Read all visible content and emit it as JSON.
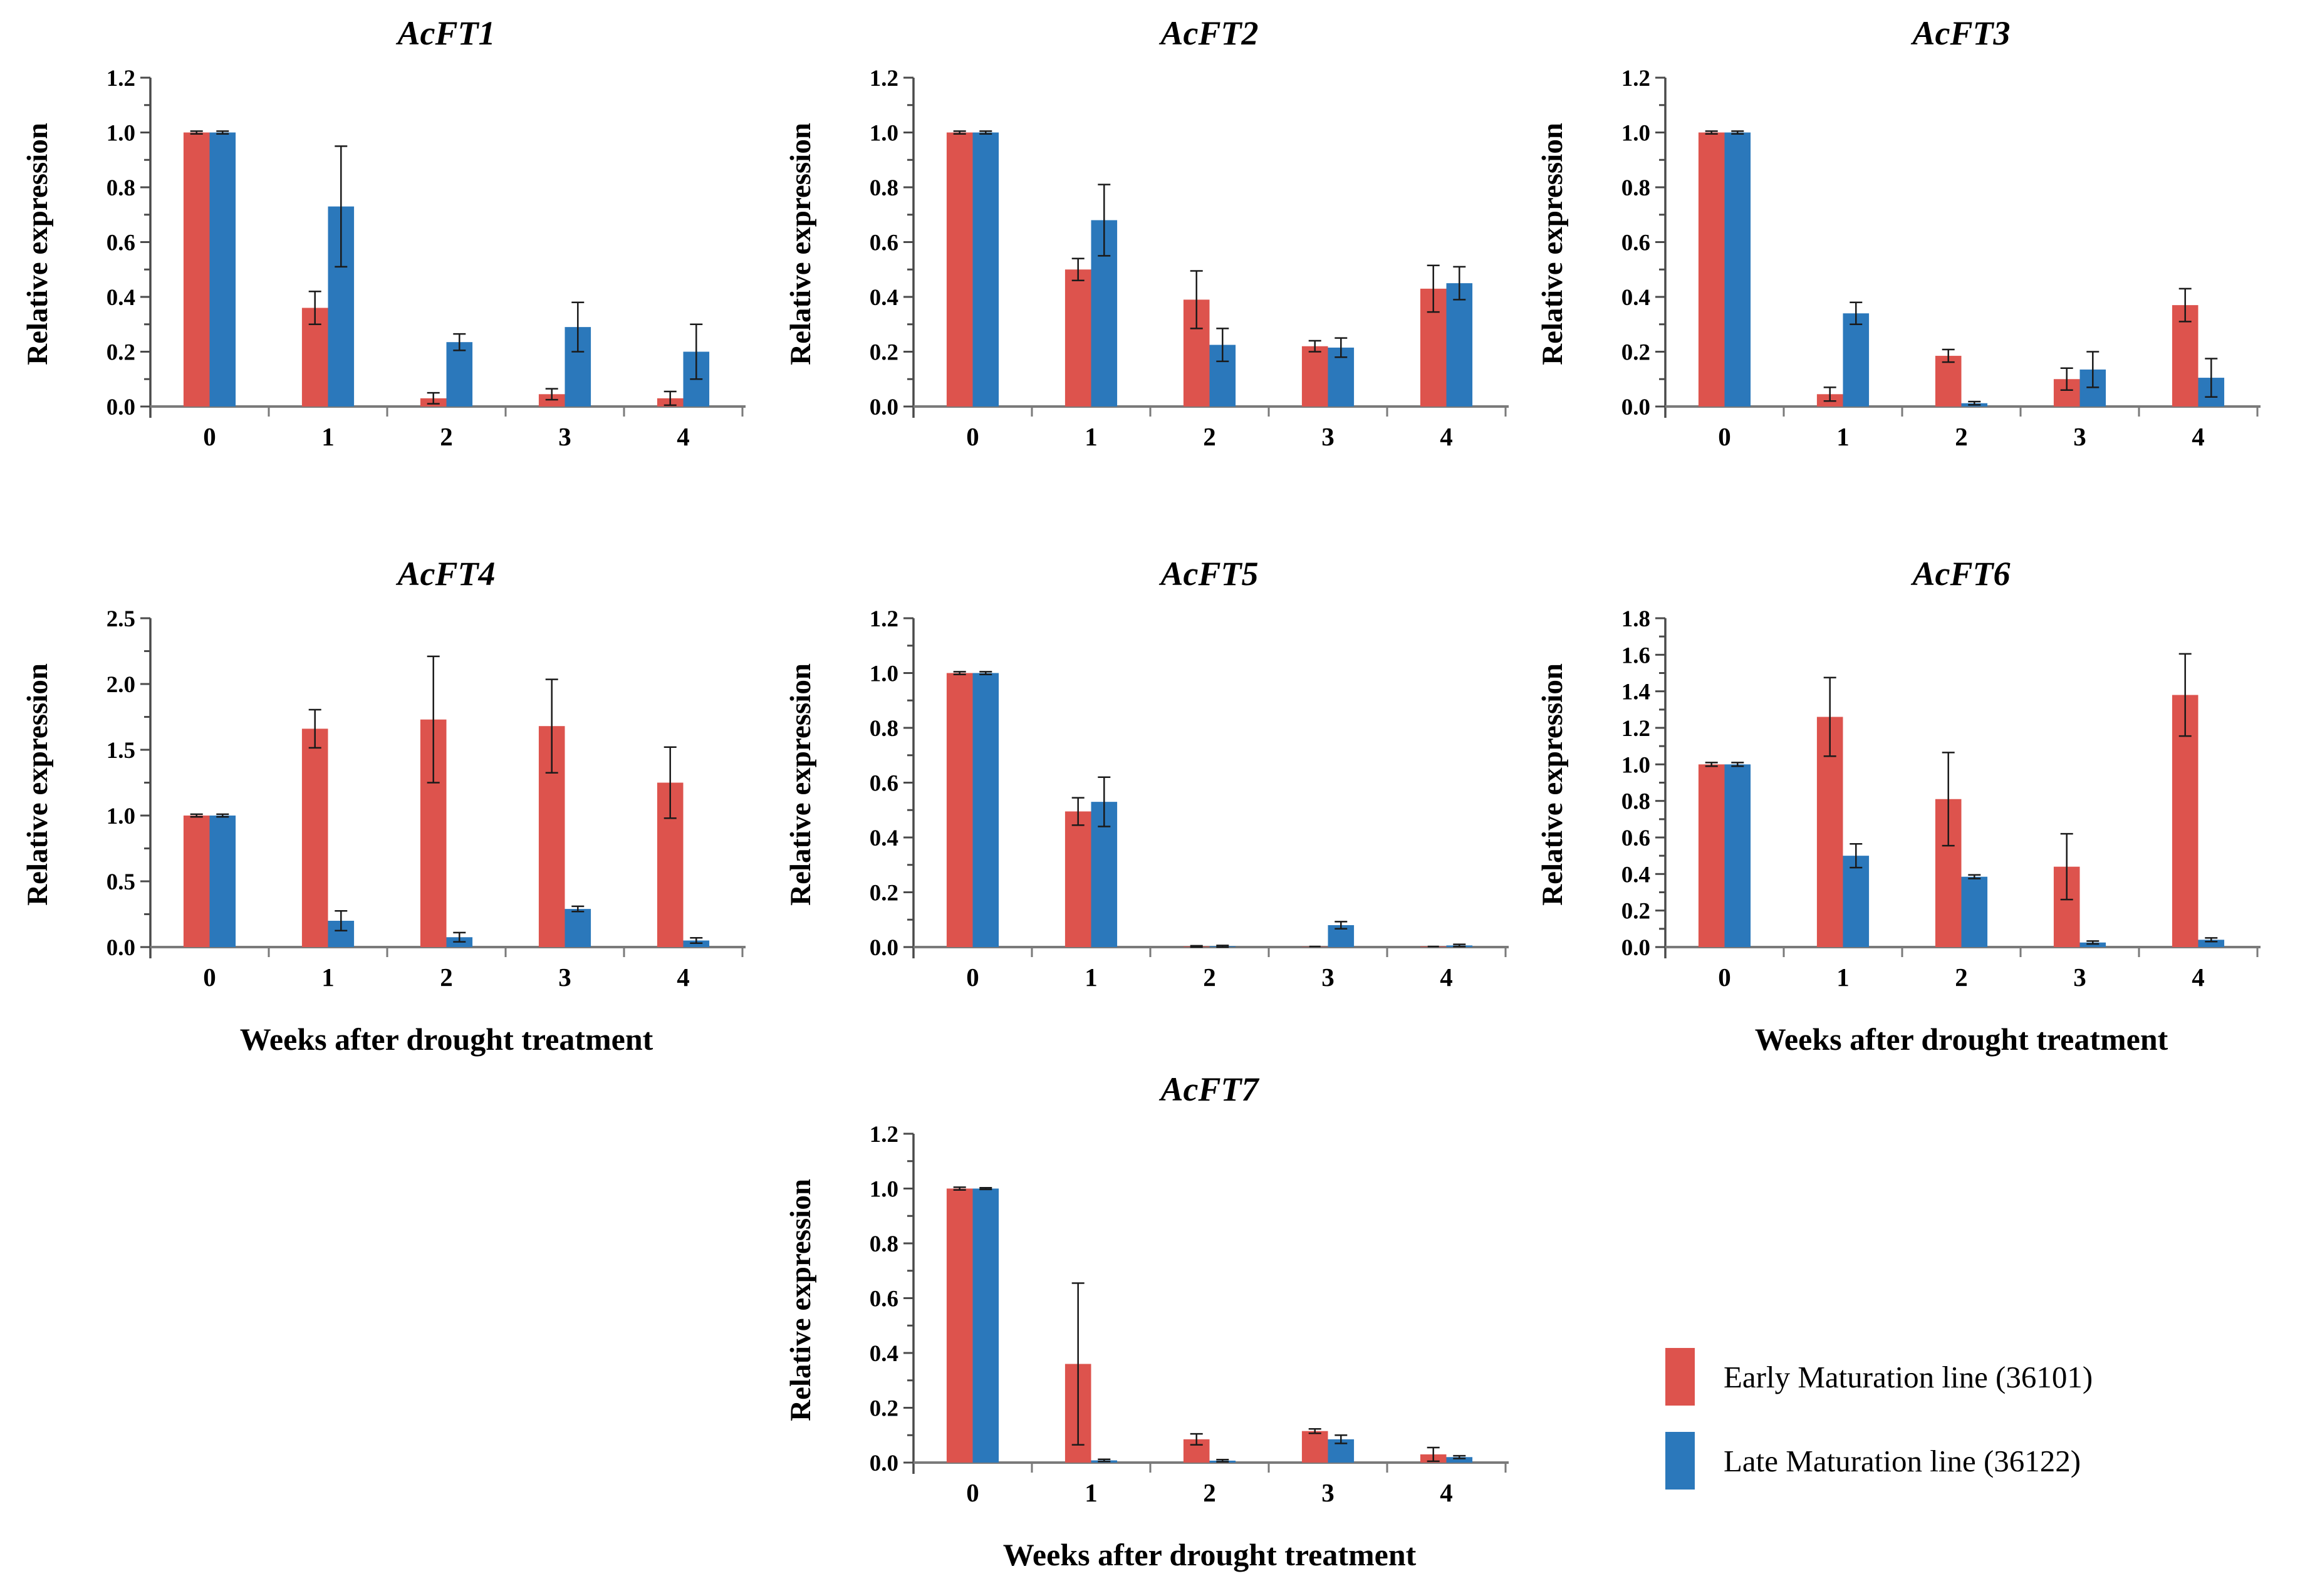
{
  "figure": {
    "colors": {
      "early": "#DD534D",
      "late": "#2B78BB",
      "y_axis": "#4a4a4a",
      "x_axis": "#7a7a7a",
      "error_bar": "#1a1a1a"
    },
    "legend": {
      "items": [
        {
          "label": "Early Maturation line (36101)",
          "color": "#DD534D"
        },
        {
          "label": "Late Maturation line (36122)",
          "color": "#2B78BB"
        }
      ]
    }
  },
  "chart_data": [
    {
      "type": "bar",
      "title": "AcFT1",
      "ylabel": "Relative expression",
      "xlabel": "",
      "categories": [
        "0",
        "1",
        "2",
        "3",
        "4"
      ],
      "ylim": [
        0,
        1.2
      ],
      "ytick_step": 0.2,
      "grid": false,
      "error_bars": true,
      "series": [
        {
          "name": "Early Maturation line (36101)",
          "values": [
            1.0,
            0.36,
            0.03,
            0.045,
            0.03
          ],
          "errors": [
            0.005,
            0.06,
            0.02,
            0.02,
            0.025
          ]
        },
        {
          "name": "Late Maturation line (36122)",
          "values": [
            1.0,
            0.73,
            0.235,
            0.29,
            0.2
          ],
          "errors": [
            0.005,
            0.22,
            0.03,
            0.09,
            0.1
          ]
        }
      ]
    },
    {
      "type": "bar",
      "title": "AcFT2",
      "ylabel": "Relative expression",
      "xlabel": "",
      "categories": [
        "0",
        "1",
        "2",
        "3",
        "4"
      ],
      "ylim": [
        0,
        1.2
      ],
      "ytick_step": 0.2,
      "grid": false,
      "error_bars": true,
      "series": [
        {
          "name": "Early Maturation line (36101)",
          "values": [
            1.0,
            0.5,
            0.39,
            0.22,
            0.43
          ],
          "errors": [
            0.005,
            0.04,
            0.105,
            0.02,
            0.085
          ]
        },
        {
          "name": "Late Maturation line (36122)",
          "values": [
            1.0,
            0.68,
            0.225,
            0.215,
            0.45
          ],
          "errors": [
            0.005,
            0.13,
            0.06,
            0.035,
            0.06
          ]
        }
      ]
    },
    {
      "type": "bar",
      "title": "AcFT3",
      "ylabel": "Relative expression",
      "xlabel": "",
      "categories": [
        "0",
        "1",
        "2",
        "3",
        "4"
      ],
      "ylim": [
        0,
        1.2
      ],
      "ytick_step": 0.2,
      "grid": false,
      "error_bars": true,
      "series": [
        {
          "name": "Early Maturation line (36101)",
          "values": [
            1.0,
            0.045,
            0.185,
            0.1,
            0.37
          ],
          "errors": [
            0.005,
            0.025,
            0.023,
            0.04,
            0.06
          ]
        },
        {
          "name": "Late Maturation line (36122)",
          "values": [
            1.0,
            0.34,
            0.012,
            0.135,
            0.105
          ],
          "errors": [
            0.005,
            0.04,
            0.006,
            0.065,
            0.07
          ]
        }
      ]
    },
    {
      "type": "bar",
      "title": "AcFT4",
      "ylabel": "Relative expression",
      "xlabel": "Weeks after drought treatment",
      "categories": [
        "0",
        "1",
        "2",
        "3",
        "4"
      ],
      "ylim": [
        0,
        2.5
      ],
      "ytick_step": 0.5,
      "grid": false,
      "error_bars": true,
      "series": [
        {
          "name": "Early Maturation line (36101)",
          "values": [
            1.0,
            1.66,
            1.73,
            1.68,
            1.25
          ],
          "errors": [
            0.01,
            0.145,
            0.48,
            0.355,
            0.27
          ]
        },
        {
          "name": "Late Maturation line (36122)",
          "values": [
            1.0,
            0.2,
            0.075,
            0.29,
            0.05
          ],
          "errors": [
            0.01,
            0.075,
            0.035,
            0.02,
            0.02
          ]
        }
      ]
    },
    {
      "type": "bar",
      "title": "AcFT5",
      "ylabel": "Relative expression",
      "xlabel": "",
      "categories": [
        "0",
        "1",
        "2",
        "3",
        "4"
      ],
      "ylim": [
        0,
        1.2
      ],
      "ytick_step": 0.2,
      "grid": false,
      "error_bars": true,
      "series": [
        {
          "name": "Early Maturation line (36101)",
          "values": [
            1.0,
            0.495,
            0.002,
            0.001,
            0.002
          ],
          "errors": [
            0.005,
            0.05,
            0.003,
            0,
            0.002
          ]
        },
        {
          "name": "Late Maturation line (36122)",
          "values": [
            1.0,
            0.53,
            0.003,
            0.08,
            0.006
          ],
          "errors": [
            0.005,
            0.09,
            0.003,
            0.013,
            0.004
          ]
        }
      ]
    },
    {
      "type": "bar",
      "title": "AcFT6",
      "ylabel": "Relative expression",
      "xlabel": "Weeks after drought treatment",
      "categories": [
        "0",
        "1",
        "2",
        "3",
        "4"
      ],
      "ylim": [
        0,
        1.8
      ],
      "ytick_step": 0.2,
      "grid": false,
      "error_bars": true,
      "series": [
        {
          "name": "Early Maturation line (36101)",
          "values": [
            1.0,
            1.26,
            0.81,
            0.44,
            1.38
          ],
          "errors": [
            0.01,
            0.215,
            0.255,
            0.18,
            0.225
          ]
        },
        {
          "name": "Late Maturation line (36122)",
          "values": [
            1.0,
            0.5,
            0.385,
            0.025,
            0.04
          ],
          "errors": [
            0.01,
            0.065,
            0.01,
            0.008,
            0.01
          ]
        }
      ]
    },
    {
      "type": "bar",
      "title": "AcFT7",
      "ylabel": "Relative expression",
      "xlabel": "Weeks after drought treatment",
      "categories": [
        "0",
        "1",
        "2",
        "3",
        "4"
      ],
      "ylim": [
        0,
        1.2
      ],
      "ytick_step": 0.2,
      "grid": false,
      "error_bars": true,
      "series": [
        {
          "name": "Early Maturation line (36101)",
          "values": [
            1.0,
            0.36,
            0.085,
            0.115,
            0.03
          ],
          "errors": [
            0.005,
            0.295,
            0.02,
            0.008,
            0.025
          ]
        },
        {
          "name": "Late Maturation line (36122)",
          "values": [
            1.0,
            0.008,
            0.007,
            0.085,
            0.02
          ],
          "errors": [
            0.003,
            0.004,
            0.004,
            0.015,
            0.005
          ]
        }
      ]
    }
  ]
}
